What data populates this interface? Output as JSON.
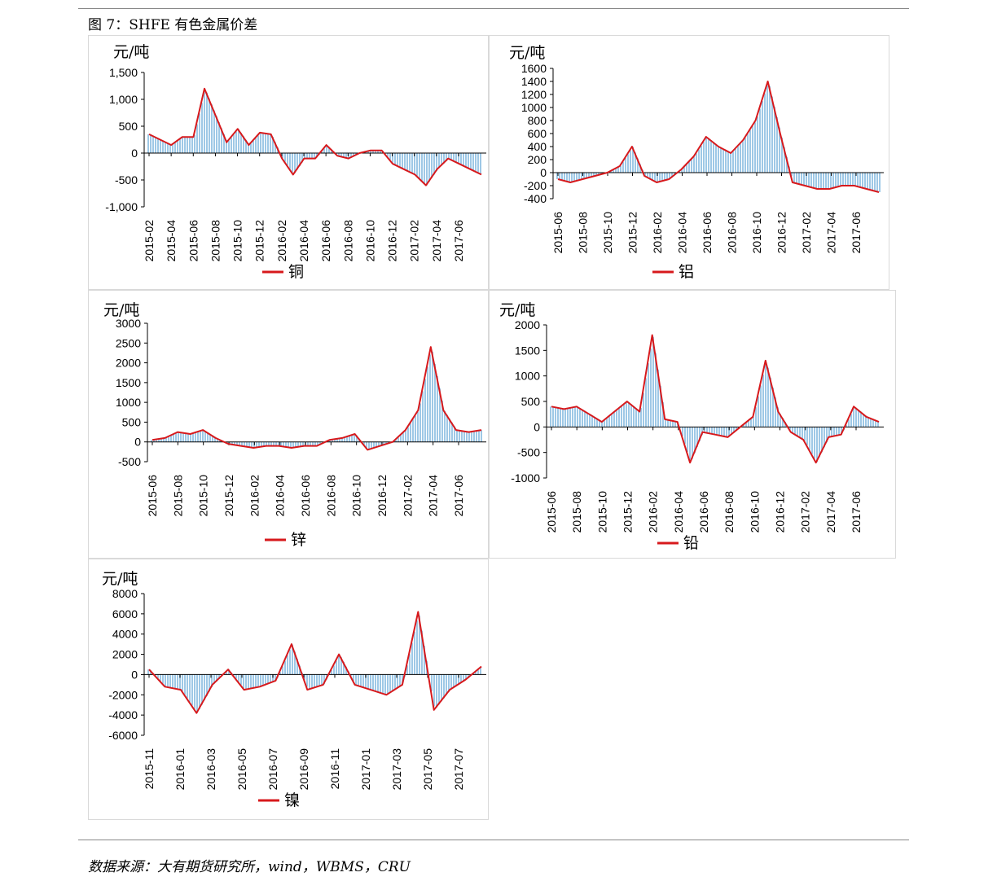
{
  "title": "图 7：SHFE 有色金属价差",
  "source": "数据来源：大有期货研究所，wind，WBMS，CRU",
  "colors": {
    "line": "#d7191c",
    "bar": "#9ec8e6",
    "axis": "#000000"
  },
  "chart_data": [
    {
      "id": "copper",
      "type": "line",
      "legend": "铜",
      "unit": "元/吨",
      "ylim": [
        -1000,
        1500
      ],
      "yticks": [
        "1,500",
        "1,000",
        "500",
        "0",
        "-500",
        "-1,000"
      ],
      "ytick_values": [
        1500,
        1000,
        500,
        0,
        -500,
        -1000
      ],
      "xticks": [
        "2015-02",
        "2015-04",
        "2015-06",
        "2015-08",
        "2015-10",
        "2015-12",
        "2016-02",
        "2016-04",
        "2016-06",
        "2016-08",
        "2016-10",
        "2016-12",
        "2017-02",
        "2017-04",
        "2017-06"
      ],
      "series": [
        {
          "name": "铜",
          "x": [
            0,
            0.5,
            1,
            1.5,
            2,
            2.5,
            3,
            3.5,
            4,
            4.5,
            5,
            5.5,
            6,
            6.5,
            7,
            7.5,
            8,
            8.5,
            9,
            9.5,
            10,
            10.5,
            11,
            11.5,
            12,
            12.5,
            13,
            13.5,
            14,
            14.5,
            15
          ],
          "y": [
            350,
            250,
            150,
            300,
            300,
            1200,
            700,
            200,
            450,
            150,
            380,
            350,
            -100,
            -400,
            -100,
            -100,
            150,
            -50,
            -100,
            0,
            50,
            50,
            -200,
            -300,
            -400,
            -600,
            -300,
            -100,
            -200,
            -300,
            -400
          ]
        }
      ]
    },
    {
      "id": "aluminum",
      "type": "line",
      "legend": "铝",
      "unit": "元/吨",
      "ylim": [
        -400,
        1600
      ],
      "yticks": [
        "1600",
        "1400",
        "1200",
        "1000",
        "800",
        "600",
        "400",
        "200",
        "0",
        "-200",
        "-400"
      ],
      "ytick_values": [
        1600,
        1400,
        1200,
        1000,
        800,
        600,
        400,
        200,
        0,
        -200,
        -400
      ],
      "xticks": [
        "2015-06",
        "2015-08",
        "2015-10",
        "2015-12",
        "2016-02",
        "2016-04",
        "2016-06",
        "2016-08",
        "2016-10",
        "2016-12",
        "2017-02",
        "2017-04",
        "2017-06"
      ],
      "series": [
        {
          "name": "铝",
          "x": [
            0,
            0.5,
            1,
            1.5,
            2,
            2.5,
            3,
            3.5,
            4,
            4.5,
            5,
            5.5,
            6,
            6.5,
            7,
            7.5,
            8,
            8.5,
            9,
            9.5,
            10,
            10.5,
            11,
            11.5,
            12,
            12.5,
            13
          ],
          "y": [
            -100,
            -150,
            -100,
            -50,
            0,
            100,
            400,
            -50,
            -150,
            -100,
            50,
            250,
            550,
            400,
            300,
            500,
            800,
            1400,
            600,
            -150,
            -200,
            -250,
            -250,
            -200,
            -200,
            -250,
            -300
          ]
        }
      ]
    },
    {
      "id": "zinc",
      "type": "line",
      "legend": "锌",
      "unit": "元/吨",
      "ylim": [
        -500,
        3000
      ],
      "yticks": [
        "3000",
        "2500",
        "2000",
        "1500",
        "1000",
        "500",
        "0",
        "-500"
      ],
      "ytick_values": [
        3000,
        2500,
        2000,
        1500,
        1000,
        500,
        0,
        -500
      ],
      "xticks": [
        "2015-06",
        "2015-08",
        "2015-10",
        "2015-12",
        "2016-02",
        "2016-04",
        "2016-06",
        "2016-08",
        "2016-10",
        "2016-12",
        "2017-02",
        "2017-04",
        "2017-06"
      ],
      "series": [
        {
          "name": "锌",
          "x": [
            0,
            0.5,
            1,
            1.5,
            2,
            2.5,
            3,
            3.5,
            4,
            4.5,
            5,
            5.5,
            6,
            6.5,
            7,
            7.5,
            8,
            8.5,
            9,
            9.5,
            10,
            10.5,
            11,
            11.5,
            12,
            12.5,
            13
          ],
          "y": [
            50,
            100,
            250,
            200,
            300,
            100,
            -50,
            -100,
            -150,
            -100,
            -100,
            -150,
            -100,
            -100,
            50,
            100,
            200,
            -200,
            -100,
            0,
            300,
            800,
            2400,
            800,
            300,
            250,
            300
          ]
        }
      ]
    },
    {
      "id": "lead",
      "type": "line",
      "legend": "铅",
      "unit": "元/吨",
      "ylim": [
        -1000,
        2000
      ],
      "yticks": [
        "2000",
        "1500",
        "1000",
        "500",
        "0",
        "-500",
        "-1000"
      ],
      "ytick_values": [
        2000,
        1500,
        1000,
        500,
        0,
        -500,
        -1000
      ],
      "xticks": [
        "2015-06",
        "2015-08",
        "2015-10",
        "2015-12",
        "2016-02",
        "2016-04",
        "2016-06",
        "2016-08",
        "2016-10",
        "2016-12",
        "2017-02",
        "2017-04",
        "2017-06"
      ],
      "series": [
        {
          "name": "铅",
          "x": [
            0,
            0.5,
            1,
            1.5,
            2,
            2.5,
            3,
            3.5,
            4,
            4.5,
            5,
            5.5,
            6,
            6.5,
            7,
            7.5,
            8,
            8.5,
            9,
            9.5,
            10,
            10.5,
            11,
            11.5,
            12,
            12.5,
            13
          ],
          "y": [
            400,
            350,
            400,
            250,
            100,
            300,
            500,
            300,
            1800,
            150,
            100,
            -700,
            -100,
            -150,
            -200,
            0,
            200,
            1300,
            300,
            -100,
            -250,
            -700,
            -200,
            -150,
            400,
            200,
            100
          ]
        }
      ]
    },
    {
      "id": "nickel",
      "type": "line",
      "legend": "镍",
      "unit": "元/吨",
      "ylim": [
        -6000,
        8000
      ],
      "yticks": [
        "8000",
        "6000",
        "4000",
        "2000",
        "0",
        "-2000",
        "-4000",
        "-6000"
      ],
      "ytick_values": [
        8000,
        6000,
        4000,
        2000,
        0,
        -2000,
        -4000,
        -6000
      ],
      "xticks": [
        "2015-11",
        "2016-01",
        "2016-03",
        "2016-05",
        "2016-07",
        "2016-09",
        "2016-11",
        "2017-01",
        "2017-03",
        "2017-05",
        "2017-07"
      ],
      "series": [
        {
          "name": "镍",
          "x": [
            0,
            0.5,
            1,
            1.5,
            2,
            2.5,
            3,
            3.5,
            4,
            4.5,
            5,
            5.5,
            6,
            6.5,
            7,
            7.5,
            8,
            8.5,
            9,
            9.5,
            10,
            10.5
          ],
          "y": [
            500,
            -1200,
            -1500,
            -3800,
            -1000,
            500,
            -1500,
            -1200,
            -600,
            3000,
            -1500,
            -1000,
            2000,
            -1000,
            -1500,
            -2000,
            -1000,
            6200,
            -3500,
            -1500,
            -500,
            800
          ]
        }
      ]
    }
  ]
}
